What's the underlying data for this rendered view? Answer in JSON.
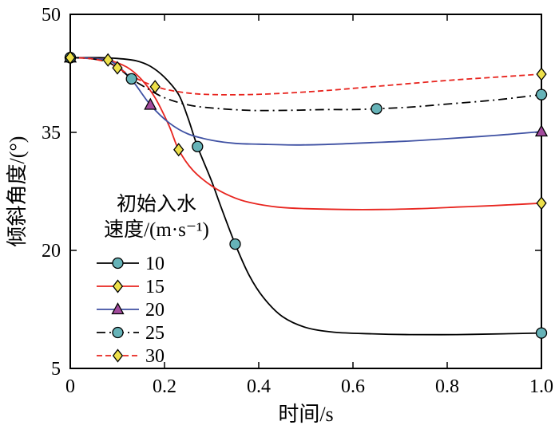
{
  "figure": {
    "background": "#ffffff"
  },
  "chart_data": {
    "type": "line",
    "title": "",
    "xlabel": "时间/s",
    "ylabel": "倾斜角度/(°)",
    "xlim": [
      0,
      1.0
    ],
    "ylim": [
      5,
      50
    ],
    "grid": false,
    "xtick_values": [
      0,
      0.2,
      0.4,
      0.6,
      0.8,
      1.0
    ],
    "xtick_labels": [
      "0",
      "0.2",
      "0.4",
      "0.6",
      "0.8",
      "1.0"
    ],
    "ytick_values": [
      5,
      20,
      35,
      50
    ],
    "ytick_labels": [
      "5",
      "20",
      "35",
      "50"
    ],
    "legend": {
      "title_lines": [
        "初始入水",
        "速度/(m·s⁻¹)"
      ],
      "position": "inside-left"
    },
    "colors": {
      "black": "#000000",
      "red": "#e8251f",
      "blue": "#3f51a3",
      "teal_marker": "#66b3b8",
      "yellow_marker": "#ede04a",
      "purple_marker": "#a24b9d"
    },
    "series": [
      {
        "name": "10",
        "line_color": "#000000",
        "line_style": "solid",
        "marker": "circle",
        "marker_fill": "#66b3b8",
        "x": [
          0,
          0.06,
          0.1,
          0.14,
          0.17,
          0.2,
          0.23,
          0.25,
          0.27,
          0.3,
          0.32,
          0.35,
          0.38,
          0.41,
          0.45,
          0.5,
          0.56,
          0.64,
          0.72,
          0.82,
          0.92,
          1.0
        ],
        "y": [
          44.5,
          44.5,
          44.4,
          44.1,
          43.4,
          42.0,
          39.8,
          36.8,
          33.2,
          28.8,
          25.5,
          20.8,
          16.8,
          14.0,
          11.6,
          10.2,
          9.6,
          9.4,
          9.3,
          9.3,
          9.4,
          9.5
        ],
        "marker_points": [
          [
            0,
            44.5
          ],
          [
            0.27,
            33.2
          ],
          [
            0.35,
            20.8
          ],
          [
            1.0,
            9.5
          ]
        ]
      },
      {
        "name": "15",
        "line_color": "#e8251f",
        "line_style": "solid",
        "marker": "diamond",
        "marker_fill": "#ede04a",
        "x": [
          0,
          0.04,
          0.08,
          0.12,
          0.15,
          0.18,
          0.21,
          0.23,
          0.26,
          0.3,
          0.34,
          0.38,
          0.44,
          0.5,
          0.58,
          0.66,
          0.74,
          0.82,
          0.9,
          1.0
        ],
        "y": [
          44.5,
          44.4,
          44.2,
          43.3,
          41.8,
          39.4,
          35.8,
          32.8,
          30.2,
          28.2,
          26.9,
          26.1,
          25.5,
          25.3,
          25.2,
          25.2,
          25.3,
          25.5,
          25.7,
          26.0
        ],
        "marker_points": [
          [
            0,
            44.5
          ],
          [
            0.08,
            44.2
          ],
          [
            0.23,
            32.8
          ],
          [
            1.0,
            26.0
          ]
        ]
      },
      {
        "name": "20",
        "line_color": "#3f51a3",
        "line_style": "solid",
        "marker": "triangle",
        "marker_fill": "#a24b9d",
        "x": [
          0,
          0.05,
          0.09,
          0.13,
          0.17,
          0.21,
          0.25,
          0.3,
          0.35,
          0.4,
          0.48,
          0.56,
          0.64,
          0.72,
          0.8,
          0.9,
          1.0
        ],
        "y": [
          44.5,
          44.4,
          43.9,
          41.7,
          38.5,
          36.2,
          34.8,
          34.0,
          33.6,
          33.5,
          33.4,
          33.5,
          33.7,
          33.9,
          34.2,
          34.6,
          35.1
        ],
        "marker_points": [
          [
            0,
            44.5
          ],
          [
            0.17,
            38.5
          ],
          [
            1.0,
            35.1
          ]
        ]
      },
      {
        "name": "25",
        "line_color": "#000000",
        "line_style": "dashdot",
        "marker": "circle",
        "marker_fill": "#66b3b8",
        "x": [
          0,
          0.04,
          0.08,
          0.11,
          0.13,
          0.16,
          0.2,
          0.25,
          0.3,
          0.38,
          0.46,
          0.54,
          0.6,
          0.65,
          0.72,
          0.8,
          0.9,
          1.0
        ],
        "y": [
          44.5,
          44.4,
          43.9,
          42.8,
          41.8,
          40.7,
          39.4,
          38.5,
          38.1,
          37.8,
          37.8,
          37.9,
          37.9,
          38.0,
          38.2,
          38.6,
          39.1,
          39.8
        ],
        "marker_points": [
          [
            0,
            44.5
          ],
          [
            0.13,
            41.8
          ],
          [
            0.65,
            38.0
          ],
          [
            1.0,
            39.8
          ]
        ]
      },
      {
        "name": "30",
        "line_color": "#e8251f",
        "line_style": "dashed",
        "marker": "diamond",
        "marker_fill": "#ede04a",
        "x": [
          0,
          0.04,
          0.08,
          0.1,
          0.13,
          0.16,
          0.2,
          0.25,
          0.3,
          0.38,
          0.46,
          0.54,
          0.62,
          0.7,
          0.8,
          0.9,
          1.0
        ],
        "y": [
          44.5,
          44.4,
          43.9,
          43.2,
          42.2,
          41.3,
          40.5,
          40.0,
          39.8,
          39.8,
          40.0,
          40.3,
          40.7,
          41.1,
          41.6,
          42.0,
          42.4
        ],
        "marker_points": [
          [
            0,
            44.5
          ],
          [
            0.1,
            43.2
          ],
          [
            0.18,
            40.8
          ],
          [
            1.0,
            42.4
          ]
        ]
      }
    ]
  }
}
